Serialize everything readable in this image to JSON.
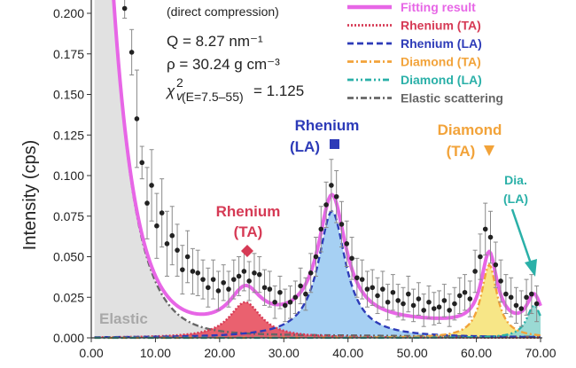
{
  "chart_data": {
    "type": "line",
    "xlabel": "",
    "ylabel": "Intensity (cps)",
    "xlim": [
      0,
      70
    ],
    "ylim": [
      0,
      0.2
    ],
    "x_ticks": [
      "0.00",
      "10.00",
      "20.00",
      "30.00",
      "40.00",
      "50.00",
      "60.00",
      "70.00"
    ],
    "y_ticks": [
      "0.000",
      "0.025",
      "0.050",
      "0.075",
      "0.100",
      "0.125",
      "0.150",
      "0.175",
      "0.200"
    ],
    "info": {
      "line1": "(direct compression)",
      "line2": "Q = 8.27 nm⁻¹",
      "line3": "ρ  = 30.24 g cm⁻³",
      "line4": "= 1.125",
      "chi_symbol": "χ",
      "chi_sup": "2",
      "chi_sub": "v",
      "chi_subscript": "(E=7.5–55)"
    },
    "legend": [
      {
        "label": "Fitting result",
        "color": "#e766e6",
        "style": "solid"
      },
      {
        "label": "Rhenium (TA)",
        "color": "#d63a55",
        "style": "dotted"
      },
      {
        "label": "Rhenium (LA)",
        "color": "#2d3bb8",
        "style": "dashed"
      },
      {
        "label": "Diamond (TA)",
        "color": "#f2a33a",
        "style": "dashdot"
      },
      {
        "label": "Diamond (LA)",
        "color": "#2ab0a8",
        "style": "dashdotdot"
      },
      {
        "label": "Elastic scattering",
        "color": "#666666",
        "style": "dashdot"
      }
    ],
    "annotations": {
      "elastic": "Elastic",
      "re_ta_1": "Rhenium",
      "re_ta_2": "(TA)",
      "re_la_1": "Rhenium",
      "re_la_2": "(LA)",
      "dia_ta_1": "Diamond",
      "dia_ta_2": "(TA)",
      "dia_la_1": "Dia.",
      "dia_la_2": "(LA)"
    },
    "colors": {
      "elastic_fill": "#dcdcdc",
      "re_ta_fill": "#e8505f",
      "re_la_fill": "#9ccbf2",
      "dia_ta_fill": "#f6e37a",
      "dia_la_fill": "#8fd6cf",
      "fit": "#e766e6",
      "data": "#222222"
    },
    "components": {
      "elastic": {
        "type": "decay",
        "center": 0,
        "width": 3.5,
        "height": 0.55,
        "floor": 0.004
      },
      "rhenium_ta": {
        "type": "lorentz",
        "center": 24,
        "amplitude": 0.022,
        "hwhm": 3.0
      },
      "rhenium_la": {
        "type": "lorentz",
        "center": 37.5,
        "amplitude": 0.078,
        "hwhm": 2.6
      },
      "diamond_ta": {
        "type": "lorentz",
        "center": 62,
        "amplitude": 0.045,
        "hwhm": 1.5
      },
      "diamond_la": {
        "type": "lorentz",
        "center": 69,
        "amplitude": 0.02,
        "hwhm": 1.4
      }
    },
    "fit_offset": 0.008,
    "data_points": [
      [
        5.2,
        0.203,
        0.006
      ],
      [
        6.3,
        0.176,
        0.014
      ],
      [
        7.1,
        0.135,
        0.03
      ],
      [
        7.9,
        0.108,
        0.01
      ],
      [
        8.7,
        0.083,
        0.022
      ],
      [
        9.4,
        0.094,
        0.022
      ],
      [
        10.2,
        0.069,
        0.02
      ],
      [
        11.0,
        0.077,
        0.021
      ],
      [
        11.8,
        0.058,
        0.02
      ],
      [
        12.6,
        0.063,
        0.018
      ],
      [
        13.4,
        0.054,
        0.016
      ],
      [
        14.2,
        0.042,
        0.015
      ],
      [
        15.0,
        0.05,
        0.016
      ],
      [
        15.8,
        0.041,
        0.014
      ],
      [
        16.6,
        0.04,
        0.014
      ],
      [
        17.4,
        0.036,
        0.012
      ],
      [
        18.2,
        0.031,
        0.012
      ],
      [
        19.0,
        0.036,
        0.012
      ],
      [
        19.8,
        0.029,
        0.012
      ],
      [
        20.6,
        0.034,
        0.011
      ],
      [
        21.4,
        0.03,
        0.011
      ],
      [
        22.2,
        0.036,
        0.012
      ],
      [
        23.0,
        0.038,
        0.012
      ],
      [
        23.8,
        0.041,
        0.012
      ],
      [
        24.6,
        0.035,
        0.012
      ],
      [
        25.4,
        0.04,
        0.012
      ],
      [
        26.2,
        0.039,
        0.011
      ],
      [
        27.0,
        0.031,
        0.011
      ],
      [
        27.8,
        0.03,
        0.011
      ],
      [
        28.6,
        0.022,
        0.01
      ],
      [
        29.4,
        0.028,
        0.01
      ],
      [
        30.2,
        0.02,
        0.01
      ],
      [
        31.0,
        0.022,
        0.01
      ],
      [
        31.8,
        0.025,
        0.01
      ],
      [
        32.6,
        0.032,
        0.011
      ],
      [
        33.4,
        0.027,
        0.01
      ],
      [
        34.2,
        0.04,
        0.012
      ],
      [
        35.0,
        0.05,
        0.012
      ],
      [
        35.8,
        0.067,
        0.014
      ],
      [
        36.6,
        0.082,
        0.014
      ],
      [
        37.4,
        0.094,
        0.016
      ],
      [
        38.2,
        0.087,
        0.016
      ],
      [
        39.0,
        0.07,
        0.014
      ],
      [
        39.8,
        0.058,
        0.014
      ],
      [
        40.6,
        0.049,
        0.013
      ],
      [
        41.4,
        0.037,
        0.012
      ],
      [
        42.2,
        0.036,
        0.012
      ],
      [
        43.0,
        0.03,
        0.011
      ],
      [
        43.8,
        0.031,
        0.011
      ],
      [
        44.6,
        0.026,
        0.011
      ],
      [
        45.4,
        0.03,
        0.011
      ],
      [
        46.2,
        0.022,
        0.011
      ],
      [
        47.0,
        0.028,
        0.011
      ],
      [
        47.8,
        0.023,
        0.01
      ],
      [
        48.6,
        0.021,
        0.01
      ],
      [
        49.4,
        0.027,
        0.011
      ],
      [
        50.2,
        0.02,
        0.01
      ],
      [
        51.0,
        0.024,
        0.01
      ],
      [
        51.8,
        0.017,
        0.01
      ],
      [
        52.6,
        0.022,
        0.01
      ],
      [
        53.4,
        0.018,
        0.01
      ],
      [
        54.2,
        0.019,
        0.01
      ],
      [
        55.0,
        0.023,
        0.01
      ],
      [
        55.8,
        0.017,
        0.01
      ],
      [
        56.6,
        0.021,
        0.01
      ],
      [
        57.4,
        0.026,
        0.011
      ],
      [
        58.2,
        0.028,
        0.011
      ],
      [
        59.0,
        0.024,
        0.011
      ],
      [
        59.8,
        0.041,
        0.013
      ],
      [
        60.6,
        0.05,
        0.014
      ],
      [
        61.4,
        0.067,
        0.016
      ],
      [
        62.2,
        0.062,
        0.016
      ],
      [
        63.0,
        0.045,
        0.014
      ],
      [
        63.8,
        0.035,
        0.013
      ],
      [
        64.6,
        0.027,
        0.012
      ],
      [
        65.4,
        0.025,
        0.012
      ],
      [
        66.2,
        0.02,
        0.011
      ],
      [
        67.0,
        0.018,
        0.011
      ],
      [
        67.8,
        0.025,
        0.011
      ],
      [
        68.6,
        0.027,
        0.012
      ],
      [
        69.4,
        0.021,
        0.011
      ]
    ]
  }
}
